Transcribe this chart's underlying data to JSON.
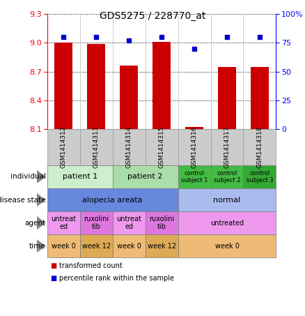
{
  "title": "GDS5275 / 228770_at",
  "samples": [
    "GSM1414312",
    "GSM1414313",
    "GSM1414314",
    "GSM1414315",
    "GSM1414316",
    "GSM1414317",
    "GSM1414318"
  ],
  "bar_values": [
    9.0,
    8.99,
    8.76,
    9.01,
    8.12,
    8.75,
    8.75
  ],
  "dot_values": [
    80,
    80,
    77,
    80,
    70,
    80,
    80
  ],
  "ylim_left": [
    8.1,
    9.3
  ],
  "ylim_right": [
    0,
    100
  ],
  "yticks_left": [
    8.1,
    8.4,
    8.7,
    9.0,
    9.3
  ],
  "yticks_right": [
    0,
    25,
    50,
    75,
    100
  ],
  "ytick_labels_right": [
    "0",
    "25",
    "50",
    "75",
    "100%"
  ],
  "bar_color": "#cc0000",
  "dot_color": "#0000cc",
  "rows": [
    {
      "label": "individual",
      "cells": [
        {
          "text": "patient 1",
          "colspan": 2,
          "color": "#cceecc",
          "fontsize": 8
        },
        {
          "text": "patient 2",
          "colspan": 2,
          "color": "#aaddaa",
          "fontsize": 8
        },
        {
          "text": "control\nsubject 1",
          "colspan": 1,
          "color": "#44bb44",
          "fontsize": 6
        },
        {
          "text": "control\nsubject 2",
          "colspan": 1,
          "color": "#44bb44",
          "fontsize": 6
        },
        {
          "text": "control\nsubject 3",
          "colspan": 1,
          "color": "#33aa33",
          "fontsize": 6
        }
      ]
    },
    {
      "label": "disease state",
      "cells": [
        {
          "text": "alopecia areata",
          "colspan": 4,
          "color": "#6688dd",
          "fontsize": 8
        },
        {
          "text": "normal",
          "colspan": 3,
          "color": "#aabbee",
          "fontsize": 8
        }
      ]
    },
    {
      "label": "agent",
      "cells": [
        {
          "text": "untreat\ned",
          "colspan": 1,
          "color": "#ee99ee",
          "fontsize": 7
        },
        {
          "text": "ruxolini\ntib",
          "colspan": 1,
          "color": "#dd77dd",
          "fontsize": 7
        },
        {
          "text": "untreat\ned",
          "colspan": 1,
          "color": "#ee99ee",
          "fontsize": 7
        },
        {
          "text": "ruxolini\ntib",
          "colspan": 1,
          "color": "#dd77dd",
          "fontsize": 7
        },
        {
          "text": "untreated",
          "colspan": 3,
          "color": "#ee99ee",
          "fontsize": 7
        }
      ]
    },
    {
      "label": "time",
      "cells": [
        {
          "text": "week 0",
          "colspan": 1,
          "color": "#eebb77",
          "fontsize": 7
        },
        {
          "text": "week 12",
          "colspan": 1,
          "color": "#ddaa55",
          "fontsize": 7
        },
        {
          "text": "week 0",
          "colspan": 1,
          "color": "#eebb77",
          "fontsize": 7
        },
        {
          "text": "week 12",
          "colspan": 1,
          "color": "#ddaa55",
          "fontsize": 7
        },
        {
          "text": "week 0",
          "colspan": 3,
          "color": "#eebb77",
          "fontsize": 7
        }
      ]
    }
  ],
  "legend_items": [
    {
      "color": "#cc0000",
      "label": "transformed count"
    },
    {
      "color": "#0000cc",
      "label": "percentile rank within the sample"
    }
  ],
  "tick_box_color": "#cccccc",
  "tick_box_edge": "#999999"
}
